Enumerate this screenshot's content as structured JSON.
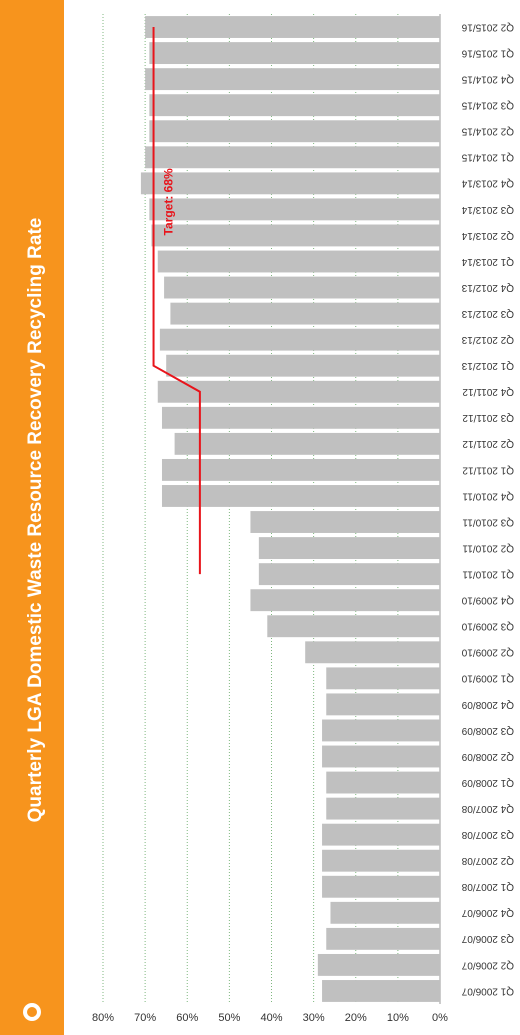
{
  "chart_data": {
    "type": "bar",
    "title": "Quarterly LGA Domestic Waste Resource Recovery Recycling Rate",
    "categories": [
      "Q1 2006/07",
      "Q2 2006/07",
      "Q3 2006/07",
      "Q4 2006/07",
      "Q1 2007/08",
      "Q2 2007/08",
      "Q3 2007/08",
      "Q4 2007/08",
      "Q1 2008/09",
      "Q2 2008/09",
      "Q3 2008/09",
      "Q4 2008/09",
      "Q1 2009/10",
      "Q2 2009/10",
      "Q3 2009/10",
      "Q4 2009/10",
      "Q1 2010/11",
      "Q2 2010/11",
      "Q3 2010/11",
      "Q4 2010/11",
      "Q1 2011/12",
      "Q2 2011/12",
      "Q3 2011/12",
      "Q4 2011/12",
      "Q1 2012/13",
      "Q2 2012/13",
      "Q3 2012/13",
      "Q4 2012/13",
      "Q1 2013/14",
      "Q2 2013/14",
      "Q3 2013/14",
      "Q4 2013/14",
      "Q1 2014/15",
      "Q2 2014/15",
      "Q3 2014/15",
      "Q4 2014/15",
      "Q1 2015/16",
      "Q2 2015/16"
    ],
    "values": [
      28,
      29,
      27,
      26,
      28,
      28,
      28,
      27,
      27,
      28,
      28,
      27,
      27,
      32,
      41,
      45,
      43,
      43,
      45,
      66,
      66,
      63,
      66,
      67,
      65,
      66.5,
      64,
      65.5,
      67,
      68.5,
      69,
      71,
      70,
      69,
      69,
      70,
      69,
      70
    ],
    "color": "#c0c0c0",
    "target": {
      "color": "#e8141b",
      "values": [
        null,
        null,
        null,
        null,
        null,
        null,
        null,
        null,
        null,
        null,
        null,
        null,
        null,
        null,
        null,
        null,
        57,
        57,
        57,
        57,
        57,
        57,
        57,
        57,
        68,
        68,
        68,
        68,
        68,
        68,
        68,
        68,
        68,
        68,
        68,
        68,
        68,
        68
      ]
    },
    "annotation": "Target: 68%",
    "ylim": [
      0,
      80
    ],
    "yticks": [
      {
        "value": 0,
        "label": "0%"
      },
      {
        "value": 10,
        "label": "10%"
      },
      {
        "value": 20,
        "label": "20%"
      },
      {
        "value": 30,
        "label": "30%"
      },
      {
        "value": 40,
        "label": "40%"
      },
      {
        "value": 50,
        "label": "50%"
      },
      {
        "value": 60,
        "label": "60%"
      },
      {
        "value": 70,
        "label": "70%"
      },
      {
        "value": 80,
        "label": "80%"
      }
    ],
    "grid": true
  }
}
